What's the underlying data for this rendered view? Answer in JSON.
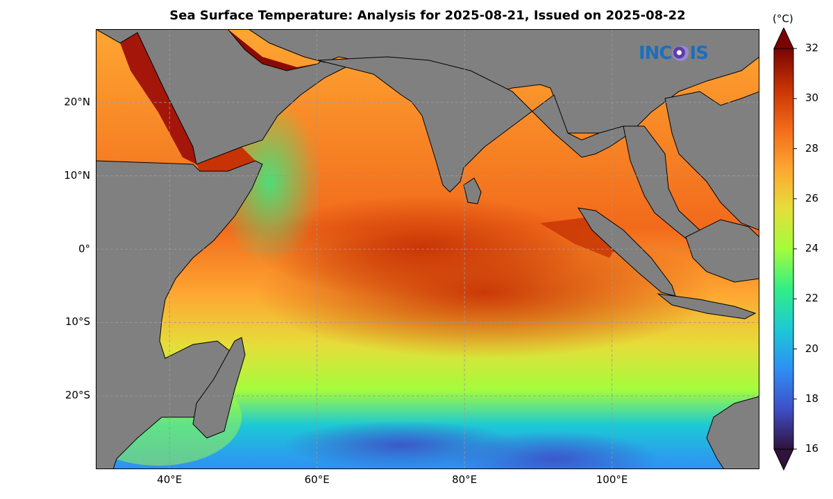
{
  "title": "Sea Surface Temperature: Analysis for 2025-08-21, Issued on 2025-08-22",
  "logo_text_a": "INC",
  "logo_text_b": "IS",
  "colorbar": {
    "unit": "(°C)",
    "min": 16,
    "max": 32,
    "tick_labels": [
      "32",
      "30",
      "28",
      "26",
      "24",
      "22",
      "20",
      "18",
      "16"
    ],
    "colors": [
      "#30123b",
      "#3e4fc7",
      "#2f8ff5",
      "#1cc9d4",
      "#33ee86",
      "#a4fc3c",
      "#e5de3a",
      "#fea632",
      "#f26a1b",
      "#c73304",
      "#7a0403"
    ]
  },
  "map": {
    "lon_range": [
      30,
      120
    ],
    "lat_range": [
      -30,
      30
    ],
    "lat_labels": [
      {
        "lat": 20,
        "text": "20°N"
      },
      {
        "lat": 10,
        "text": "10°N"
      },
      {
        "lat": 0,
        "text": "0°"
      },
      {
        "lat": -10,
        "text": "10°S"
      },
      {
        "lat": -20,
        "text": "20°S"
      }
    ],
    "lon_labels": [
      {
        "lon": 40,
        "text": "40°E"
      },
      {
        "lon": 60,
        "text": "60°E"
      },
      {
        "lon": 80,
        "text": "80°E"
      },
      {
        "lon": 100,
        "text": "100°E"
      }
    ],
    "land_color": "#808080"
  }
}
